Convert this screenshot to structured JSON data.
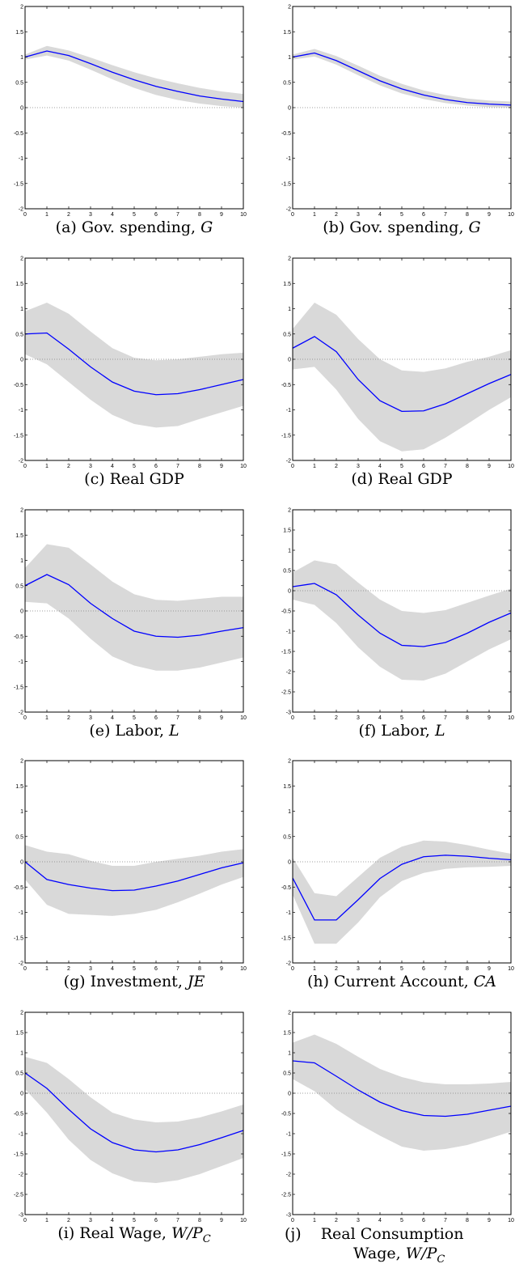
{
  "chart_data": [
    {
      "id": "a",
      "type": "line",
      "caption_tag": "(a)",
      "caption_text": "Gov. spending,",
      "caption_math": "G",
      "x": [
        0,
        1,
        2,
        3,
        4,
        5,
        6,
        7,
        8,
        9,
        10
      ],
      "xticks": [
        "0",
        "1",
        "2",
        "3",
        "4",
        "5",
        "6",
        "7",
        "8",
        "9",
        "10"
      ],
      "ylim": [
        -2,
        2
      ],
      "yticks": [
        "2",
        "1.5",
        "1",
        "0.5",
        "0",
        "-0.5",
        "-1",
        "-1.5",
        "-2"
      ],
      "series": [
        {
          "values": [
            1.0,
            1.12,
            1.03,
            0.87,
            0.7,
            0.55,
            0.42,
            0.32,
            0.23,
            0.17,
            0.12
          ],
          "lower": [
            0.95,
            1.03,
            0.93,
            0.75,
            0.56,
            0.39,
            0.25,
            0.15,
            0.08,
            0.03,
            0.0
          ],
          "upper": [
            1.05,
            1.22,
            1.13,
            0.99,
            0.84,
            0.7,
            0.58,
            0.48,
            0.39,
            0.32,
            0.27
          ]
        }
      ]
    },
    {
      "id": "b",
      "type": "line",
      "caption_tag": "(b)",
      "caption_text": "Gov. spending,",
      "caption_math": "G",
      "x": [
        0,
        1,
        2,
        3,
        4,
        5,
        6,
        7,
        8,
        9,
        10
      ],
      "xticks": [
        "0",
        "1",
        "2",
        "3",
        "4",
        "5",
        "6",
        "7",
        "8",
        "9",
        "10"
      ],
      "ylim": [
        -2,
        2
      ],
      "yticks": [
        "2",
        "1.5",
        "1",
        "0.5",
        "0",
        "-0.5",
        "-1",
        "-1.5",
        "-2"
      ],
      "series": [
        {
          "values": [
            1.0,
            1.08,
            0.93,
            0.73,
            0.53,
            0.37,
            0.25,
            0.16,
            0.1,
            0.07,
            0.05
          ],
          "lower": [
            0.95,
            1.01,
            0.85,
            0.64,
            0.44,
            0.28,
            0.17,
            0.09,
            0.04,
            0.01,
            0.0
          ],
          "upper": [
            1.05,
            1.16,
            1.02,
            0.83,
            0.63,
            0.47,
            0.34,
            0.25,
            0.18,
            0.14,
            0.12
          ]
        }
      ]
    },
    {
      "id": "c",
      "type": "line",
      "caption_tag": "(c)",
      "caption_text": "Real GDP",
      "caption_math": "",
      "x": [
        0,
        1,
        2,
        3,
        4,
        5,
        6,
        7,
        8,
        9,
        10
      ],
      "xticks": [
        "0",
        "1",
        "2",
        "3",
        "4",
        "5",
        "6",
        "7",
        "8",
        "9",
        "10"
      ],
      "ylim": [
        -2,
        2
      ],
      "yticks": [
        "2",
        "1.5",
        "1",
        "0.5",
        "0",
        "-0.5",
        "-1",
        "-1.5",
        "-2"
      ],
      "series": [
        {
          "values": [
            0.5,
            0.52,
            0.2,
            -0.15,
            -0.45,
            -0.63,
            -0.7,
            -0.68,
            -0.6,
            -0.5,
            -0.4
          ],
          "lower": [
            0.1,
            -0.1,
            -0.45,
            -0.8,
            -1.1,
            -1.28,
            -1.35,
            -1.32,
            -1.18,
            -1.05,
            -0.92
          ],
          "upper": [
            0.95,
            1.12,
            0.9,
            0.55,
            0.22,
            0.03,
            -0.02,
            0.0,
            0.05,
            0.1,
            0.13
          ]
        }
      ]
    },
    {
      "id": "d",
      "type": "line",
      "caption_tag": "(d)",
      "caption_text": "Real GDP",
      "caption_math": "",
      "x": [
        0,
        1,
        2,
        3,
        4,
        5,
        6,
        7,
        8,
        9,
        10
      ],
      "xticks": [
        "0",
        "1",
        "2",
        "3",
        "4",
        "5",
        "6",
        "7",
        "8",
        "9",
        "10"
      ],
      "ylim": [
        -2,
        2
      ],
      "yticks": [
        "2",
        "1.5",
        "1",
        "0.5",
        "0",
        "-0.5",
        "-1",
        "-1.5",
        "-2"
      ],
      "series": [
        {
          "values": [
            0.22,
            0.45,
            0.15,
            -0.4,
            -0.82,
            -1.03,
            -1.02,
            -0.88,
            -0.68,
            -0.48,
            -0.3
          ],
          "lower": [
            -0.2,
            -0.15,
            -0.6,
            -1.18,
            -1.62,
            -1.82,
            -1.78,
            -1.55,
            -1.28,
            -1.0,
            -0.75
          ],
          "upper": [
            0.6,
            1.12,
            0.88,
            0.4,
            0.0,
            -0.22,
            -0.25,
            -0.18,
            -0.05,
            0.05,
            0.18
          ]
        }
      ]
    },
    {
      "id": "e",
      "type": "line",
      "caption_tag": "(e)",
      "caption_text": "Labor,",
      "caption_math": "L",
      "x": [
        0,
        1,
        2,
        3,
        4,
        5,
        6,
        7,
        8,
        9,
        10
      ],
      "xticks": [
        "0",
        "1",
        "2",
        "3",
        "4",
        "5",
        "6",
        "7",
        "8",
        "9",
        "10"
      ],
      "ylim": [
        -2,
        2
      ],
      "yticks": [
        "2",
        "1.5",
        "1",
        "0.5",
        "0",
        "-0.5",
        "-1",
        "-1.5",
        "-2"
      ],
      "series": [
        {
          "values": [
            0.5,
            0.72,
            0.52,
            0.15,
            -0.15,
            -0.4,
            -0.5,
            -0.52,
            -0.48,
            -0.4,
            -0.33
          ],
          "lower": [
            0.18,
            0.15,
            -0.15,
            -0.55,
            -0.9,
            -1.08,
            -1.18,
            -1.18,
            -1.12,
            -1.02,
            -0.92
          ],
          "upper": [
            0.85,
            1.32,
            1.25,
            0.92,
            0.58,
            0.33,
            0.22,
            0.2,
            0.24,
            0.28,
            0.28
          ]
        }
      ]
    },
    {
      "id": "f",
      "type": "line",
      "caption_tag": "(f)",
      "caption_text": "Labor,",
      "caption_math": "L",
      "x": [
        0,
        1,
        2,
        3,
        4,
        5,
        6,
        7,
        8,
        9,
        10
      ],
      "xticks": [
        "0",
        "1",
        "2",
        "3",
        "4",
        "5",
        "6",
        "7",
        "8",
        "9",
        "10"
      ],
      "ylim": [
        -3,
        2
      ],
      "yticks": [
        "2",
        "1.5",
        "1",
        "0.5",
        "0",
        "-0.5",
        "-1",
        "-1.5",
        "-2",
        "-2.5",
        "-3"
      ],
      "series": [
        {
          "values": [
            0.1,
            0.18,
            -0.1,
            -0.6,
            -1.05,
            -1.35,
            -1.38,
            -1.28,
            -1.05,
            -0.78,
            -0.55
          ],
          "lower": [
            -0.22,
            -0.35,
            -0.8,
            -1.4,
            -1.88,
            -2.2,
            -2.22,
            -2.05,
            -1.75,
            -1.45,
            -1.2
          ],
          "upper": [
            0.45,
            0.75,
            0.65,
            0.2,
            -0.22,
            -0.5,
            -0.55,
            -0.48,
            -0.3,
            -0.12,
            0.05
          ]
        }
      ]
    },
    {
      "id": "g",
      "type": "line",
      "caption_tag": "(g)",
      "caption_text": "Investment,",
      "caption_math": "JE",
      "x": [
        0,
        1,
        2,
        3,
        4,
        5,
        6,
        7,
        8,
        9,
        10
      ],
      "xticks": [
        "0",
        "1",
        "2",
        "3",
        "4",
        "5",
        "6",
        "7",
        "8",
        "9",
        "10"
      ],
      "ylim": [
        -2,
        2
      ],
      "yticks": [
        "2",
        "1.5",
        "1",
        "0.5",
        "0",
        "-0.5",
        "-1",
        "-1.5",
        "-2"
      ],
      "series": [
        {
          "values": [
            0.0,
            -0.35,
            -0.45,
            -0.52,
            -0.57,
            -0.56,
            -0.48,
            -0.38,
            -0.25,
            -0.12,
            -0.02
          ],
          "lower": [
            -0.35,
            -0.85,
            -1.03,
            -1.05,
            -1.07,
            -1.03,
            -0.95,
            -0.8,
            -0.63,
            -0.45,
            -0.3
          ],
          "upper": [
            0.33,
            0.2,
            0.15,
            0.02,
            -0.08,
            -0.08,
            0.0,
            0.06,
            0.12,
            0.2,
            0.25
          ]
        }
      ]
    },
    {
      "id": "h",
      "type": "line",
      "caption_tag": "(h)",
      "caption_text": "Current Account,",
      "caption_math": "CA",
      "x": [
        0,
        1,
        2,
        3,
        4,
        5,
        6,
        7,
        8,
        9,
        10
      ],
      "xticks": [
        "0",
        "1",
        "2",
        "3",
        "4",
        "5",
        "6",
        "7",
        "8",
        "9",
        "10"
      ],
      "ylim": [
        -2,
        2
      ],
      "yticks": [
        "2",
        "1.5",
        "1",
        "0.5",
        "0",
        "-0.5",
        "-1",
        "-1.5",
        "-2"
      ],
      "series": [
        {
          "values": [
            -0.32,
            -1.15,
            -1.15,
            -0.75,
            -0.33,
            -0.05,
            0.1,
            0.13,
            0.11,
            0.07,
            0.04
          ],
          "lower": [
            -0.65,
            -1.62,
            -1.62,
            -1.2,
            -0.7,
            -0.38,
            -0.22,
            -0.14,
            -0.11,
            -0.1,
            -0.08
          ],
          "upper": [
            0.08,
            -0.62,
            -0.68,
            -0.3,
            0.08,
            0.3,
            0.42,
            0.4,
            0.33,
            0.24,
            0.16
          ]
        }
      ]
    },
    {
      "id": "i",
      "type": "line",
      "caption_tag": "(i)",
      "caption_text": "Real Wage,",
      "caption_math": "W/P",
      "caption_sub": "C",
      "x": [
        0,
        1,
        2,
        3,
        4,
        5,
        6,
        7,
        8,
        9,
        10
      ],
      "xticks": [
        "0",
        "1",
        "2",
        "3",
        "4",
        "5",
        "6",
        "7",
        "8",
        "9",
        "10"
      ],
      "ylim": [
        -3,
        2
      ],
      "yticks": [
        "2",
        "1.5",
        "1",
        "0.5",
        "0",
        "-0.5",
        "-1",
        "-1.5",
        "-2",
        "-2.5",
        "-3"
      ],
      "series": [
        {
          "values": [
            0.5,
            0.12,
            -0.4,
            -0.88,
            -1.22,
            -1.4,
            -1.45,
            -1.4,
            -1.27,
            -1.1,
            -0.92
          ],
          "lower": [
            0.1,
            -0.48,
            -1.15,
            -1.65,
            -1.98,
            -2.18,
            -2.22,
            -2.15,
            -2.0,
            -1.8,
            -1.6
          ],
          "upper": [
            0.9,
            0.75,
            0.35,
            -0.1,
            -0.48,
            -0.65,
            -0.72,
            -0.7,
            -0.6,
            -0.45,
            -0.28
          ]
        }
      ]
    },
    {
      "id": "j",
      "type": "line",
      "caption_tag": "(j)",
      "caption_text": "Real Consumption",
      "caption_text2": "Wage,",
      "caption_math": "W/P",
      "caption_sub": "C",
      "x": [
        0,
        1,
        2,
        3,
        4,
        5,
        6,
        7,
        8,
        9,
        10
      ],
      "xticks": [
        "0",
        "1",
        "2",
        "3",
        "4",
        "5",
        "6",
        "7",
        "8",
        "9",
        "10"
      ],
      "ylim": [
        -3,
        2
      ],
      "yticks": [
        "2",
        "1.5",
        "1",
        "0.5",
        "0",
        "-0.5",
        "-1",
        "-1.5",
        "-2",
        "-2.5",
        "-3"
      ],
      "series": [
        {
          "values": [
            0.8,
            0.75,
            0.42,
            0.08,
            -0.22,
            -0.43,
            -0.55,
            -0.57,
            -0.52,
            -0.42,
            -0.32
          ],
          "lower": [
            0.35,
            0.05,
            -0.4,
            -0.75,
            -1.05,
            -1.32,
            -1.42,
            -1.38,
            -1.28,
            -1.12,
            -0.95
          ],
          "upper": [
            1.25,
            1.45,
            1.22,
            0.9,
            0.6,
            0.4,
            0.27,
            0.22,
            0.22,
            0.24,
            0.28
          ]
        }
      ]
    }
  ]
}
